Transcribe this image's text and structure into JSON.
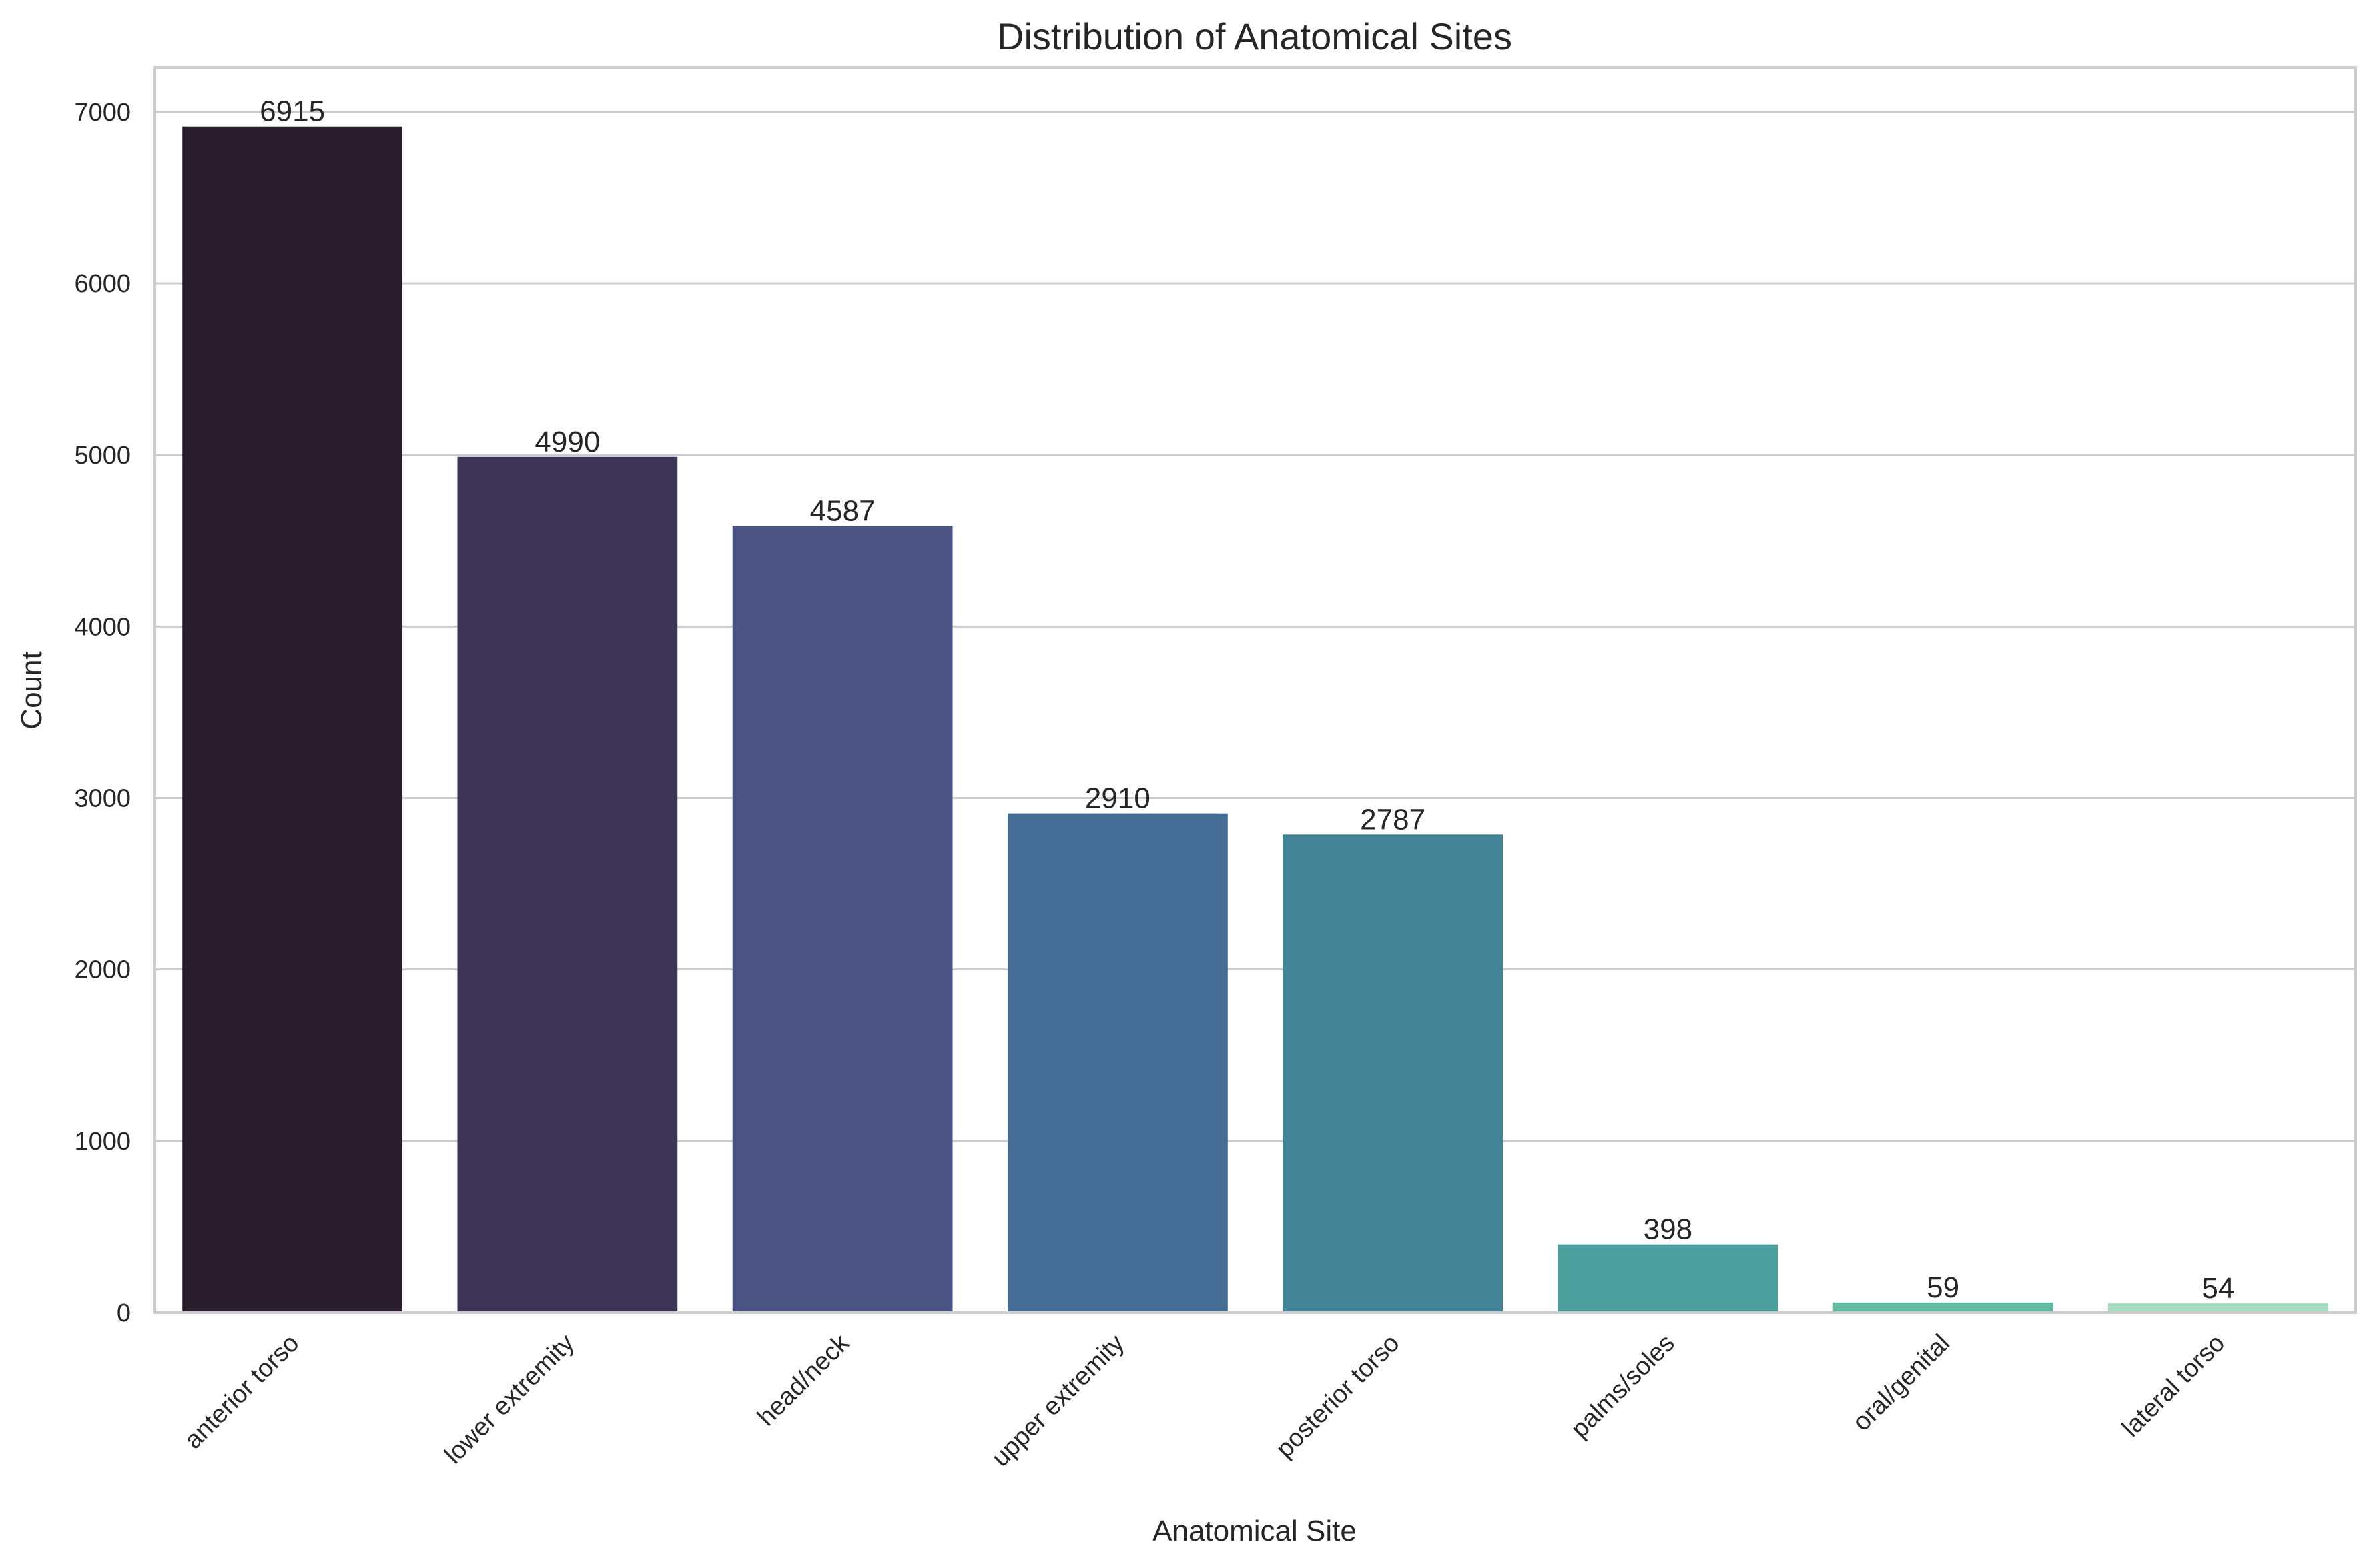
{
  "chart_data": {
    "type": "bar",
    "title": "Distribution of Anatomical Sites",
    "xlabel": "Anatomical Site",
    "ylabel": "Count",
    "categories": [
      "anterior torso",
      "lower extremity",
      "head/neck",
      "upper extremity",
      "posterior torso",
      "palms/soles",
      "oral/genital",
      "lateral torso"
    ],
    "values": [
      6915,
      4990,
      4587,
      2910,
      2787,
      398,
      59,
      54
    ],
    "data_labels": [
      "6915",
      "4990",
      "4587",
      "2910",
      "2787",
      "398",
      "59",
      "54"
    ],
    "ylim": [
      0,
      7260
    ],
    "yticks": [
      0,
      1000,
      2000,
      3000,
      4000,
      5000,
      6000,
      7000
    ],
    "ytick_labels": [
      "0",
      "1000",
      "2000",
      "3000",
      "4000",
      "5000",
      "6000",
      "7000"
    ],
    "grid": true,
    "colors": [
      "#2a1d2e",
      "#3d3556",
      "#4a5384",
      "#446c94",
      "#438596",
      "#4ba09d",
      "#5fbb9f",
      "#a7dbbf"
    ]
  }
}
